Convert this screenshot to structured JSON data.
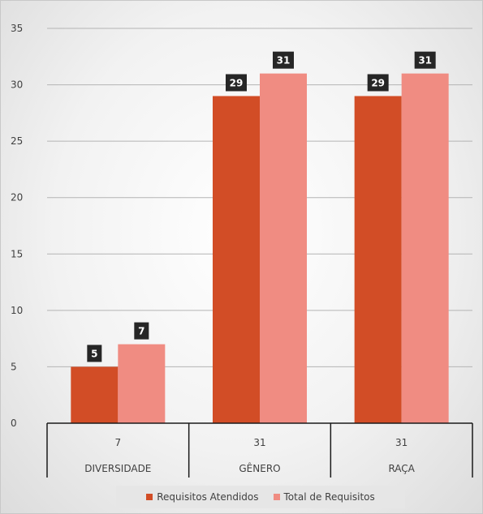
{
  "chart_data": {
    "type": "bar",
    "categories": [
      "DIVERSIDADE",
      "GÊNERO",
      "RAÇA"
    ],
    "category_table_values": [
      "7",
      "31",
      "31"
    ],
    "series": [
      {
        "name": "Requisitos Atendidos",
        "values": [
          5,
          29,
          29
        ],
        "color": "#d24d26"
      },
      {
        "name": "Total de Requisitos",
        "values": [
          7,
          31,
          31
        ],
        "color": "#f08c82"
      }
    ],
    "y_ticks": [
      0,
      5,
      10,
      15,
      20,
      25,
      30,
      35
    ],
    "ylim": [
      0,
      35
    ],
    "grid": true,
    "data_labels": true,
    "legend_position": "bottom",
    "title": "",
    "xlabel": "",
    "ylabel": ""
  },
  "colors": {
    "gridline": "#b4b4b4",
    "axis": "#1a1a1a",
    "data_label_bg": "#262626"
  }
}
